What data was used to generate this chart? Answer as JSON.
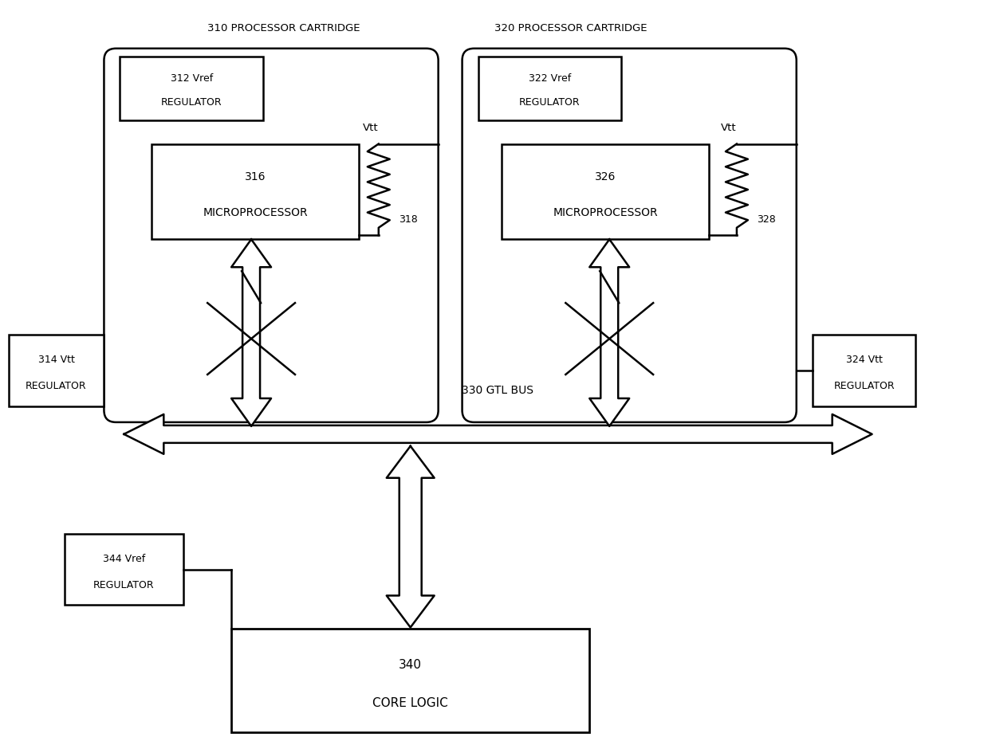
{
  "bg_color": "#ffffff",
  "line_color": "#000000",
  "figsize": [
    12.39,
    9.4
  ],
  "dpi": 100,
  "lw": 1.8,
  "labels": {
    "cart310": "310 PROCESSOR CARTRIDGE",
    "cart320": "320 PROCESSOR CARTRIDGE",
    "vref312_l1": "312 Vref",
    "vref312_l2": "REGULATOR",
    "vref322_l1": "322 Vref",
    "vref322_l2": "REGULATOR",
    "mp316_l1": "316",
    "mp316_l2": "MICROPROCESSOR",
    "mp326_l1": "326",
    "mp326_l2": "MICROPROCESSOR",
    "vtt314_l1": "314 Vtt",
    "vtt314_l2": "REGULATOR",
    "vtt324_l1": "324 Vtt",
    "vtt324_l2": "REGULATOR",
    "vref344_l1": "344 Vref",
    "vref344_l2": "REGULATOR",
    "core_l1": "340",
    "core_l2": "CORE LOGIC",
    "vtt_left": "Vtt",
    "vtt_right": "Vtt",
    "res318": "318",
    "res328": "328",
    "gtl": "330 GTL BUS"
  }
}
